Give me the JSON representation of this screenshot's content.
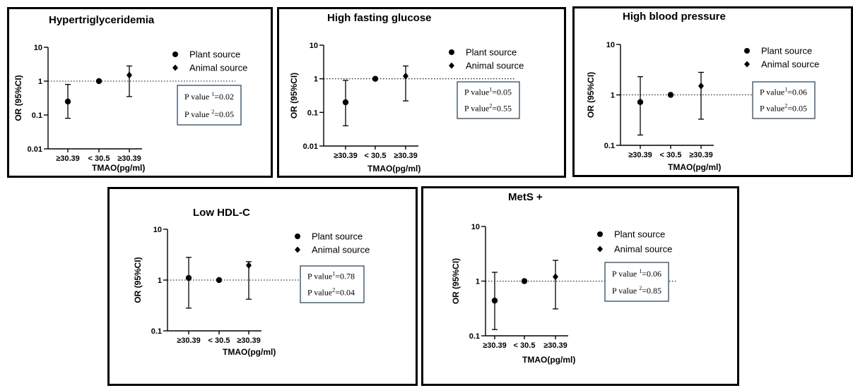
{
  "chart_data": [
    {
      "type": "scatter",
      "title": "Hypertriglyceridemia",
      "xlabel": "TMAO(pg/ml)",
      "ylabel": "OR (95%CI)",
      "yscale": "log",
      "ylim": [
        0.01,
        10
      ],
      "yticks": [
        "10",
        "1",
        "0.1",
        "0.01"
      ],
      "categories": [
        "≥30.39",
        "< 30.5",
        "≥30.39"
      ],
      "reference_line": 1,
      "points": [
        {
          "category": "≥30.39",
          "or": 0.25,
          "low": 0.08,
          "high": 0.8,
          "marker": "circle"
        },
        {
          "category": "< 30.5",
          "or": 1,
          "marker": "circle"
        },
        {
          "category": "≥30.39",
          "or": 1.5,
          "low": 0.35,
          "high": 2.8,
          "marker": "diamond"
        }
      ],
      "legend": [
        "Plant source",
        "Animal source"
      ],
      "pvalues": [
        {
          "prefix": "P value ",
          "sup": "1",
          "value": "=0.02"
        },
        {
          "prefix": "P value ",
          "sup": "2",
          "value": "=0.05"
        }
      ]
    },
    {
      "type": "scatter",
      "title": "High fasting glucose",
      "xlabel": "TMAO(pg/ml)",
      "ylabel": "OR (95%CI)",
      "yscale": "log",
      "ylim": [
        0.01,
        10
      ],
      "yticks": [
        "10",
        "1",
        "0.1",
        "0.01"
      ],
      "categories": [
        "≥30.39",
        "< 30.5",
        "≥30.39"
      ],
      "reference_line": 1,
      "points": [
        {
          "category": "≥30.39",
          "or": 0.2,
          "low": 0.04,
          "high": 0.9,
          "marker": "circle"
        },
        {
          "category": "< 30.5",
          "or": 1,
          "marker": "circle"
        },
        {
          "category": "≥30.39",
          "or": 1.2,
          "low": 0.22,
          "high": 2.4,
          "marker": "diamond"
        }
      ],
      "legend": [
        "Plant source",
        "Animal source"
      ],
      "pvalues": [
        {
          "prefix": "P value",
          "sup": "1",
          "value": "=0.05"
        },
        {
          "prefix": "P value",
          "sup": "2",
          "value": "=0.55"
        }
      ]
    },
    {
      "type": "scatter",
      "title": "High blood pressure",
      "xlabel": "TMAO(pg/ml)",
      "ylabel": "OR (95%CI)",
      "yscale": "log",
      "ylim": [
        0.1,
        10
      ],
      "yticks": [
        "10",
        "1",
        "0.1"
      ],
      "categories": [
        "≥30.39",
        "< 30.5",
        "≥30.39"
      ],
      "reference_line": 1,
      "points": [
        {
          "category": "≥30.39",
          "or": 0.72,
          "low": 0.16,
          "high": 2.3,
          "marker": "circle"
        },
        {
          "category": "< 30.5",
          "or": 1,
          "marker": "circle"
        },
        {
          "category": "≥30.39",
          "or": 1.5,
          "low": 0.33,
          "high": 2.8,
          "marker": "diamond"
        }
      ],
      "legend": [
        "Plant source",
        "Animal source"
      ],
      "pvalues": [
        {
          "prefix": "P value",
          "sup": "1",
          "value": "=0.06"
        },
        {
          "prefix": "P value",
          "sup": "2",
          "value": "=0.05"
        }
      ]
    },
    {
      "type": "scatter",
      "title": "Low HDL-C",
      "xlabel": "TMAO(pg/ml)",
      "ylabel": "OR (95%CI)",
      "yscale": "log",
      "ylim": [
        0.1,
        10
      ],
      "yticks": [
        "10",
        "1",
        "0.1"
      ],
      "categories": [
        "≥30.39",
        "< 30.5",
        "≥30.39"
      ],
      "reference_line": 1,
      "points": [
        {
          "category": "≥30.39",
          "or": 1.1,
          "low": 0.28,
          "high": 2.8,
          "marker": "circle"
        },
        {
          "category": "< 30.5",
          "or": 1,
          "marker": "circle"
        },
        {
          "category": "≥30.39",
          "or": 1.95,
          "low": 0.42,
          "high": 2.3,
          "marker": "diamond"
        }
      ],
      "legend": [
        "Plant source",
        "Animal source"
      ],
      "pvalues": [
        {
          "prefix": "P value",
          "sup": "1",
          "value": "=0.78"
        },
        {
          "prefix": "P value",
          "sup": "2",
          "value": "=0.04"
        }
      ]
    },
    {
      "type": "scatter",
      "title": "MetS +",
      "xlabel": "TMAO(pg/ml)",
      "ylabel": "OR (95%CI)",
      "yscale": "log",
      "ylim": [
        0.1,
        10
      ],
      "yticks": [
        "10",
        "1",
        "0.1"
      ],
      "categories": [
        "≥30.39",
        "< 30.5",
        "≥30.39"
      ],
      "reference_line": 1,
      "points": [
        {
          "category": "≥30.39",
          "or": 0.44,
          "low": 0.13,
          "high": 1.45,
          "marker": "circle"
        },
        {
          "category": "< 30.5",
          "or": 1,
          "marker": "circle"
        },
        {
          "category": "≥30.39",
          "or": 1.2,
          "low": 0.31,
          "high": 2.4,
          "marker": "diamond"
        }
      ],
      "legend": [
        "Plant source",
        "Animal source"
      ],
      "pvalues": [
        {
          "prefix": "P value ",
          "sup": "1",
          "value": "=0.06"
        },
        {
          "prefix": "P value ",
          "sup": "2",
          "value": "=0.85"
        }
      ]
    }
  ]
}
